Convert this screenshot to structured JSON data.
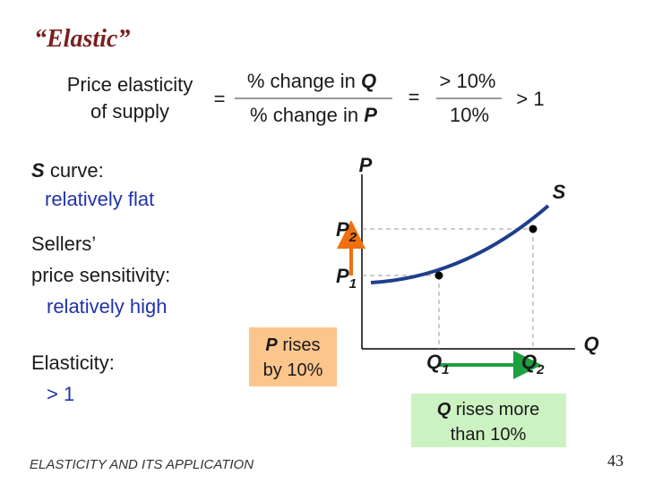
{
  "title": "“Elastic”",
  "formula": {
    "lhs_line1": "Price elasticity",
    "lhs_line2": "of supply",
    "eq1": "=",
    "num_text": "% change in",
    "num_var": "Q",
    "den_text": "% change in",
    "den_var": "P",
    "eq2": "=",
    "num2": "> 10%",
    "den2": "10%",
    "result": "> 1"
  },
  "left": {
    "s_var": "S",
    "s_text": "curve:",
    "s_line2": "relatively flat",
    "sellers1": "Sellers’",
    "sellers2": "price sensitivity:",
    "sellers3": "relatively high",
    "elast1": "Elasticity:",
    "elast2": "> 1"
  },
  "graph": {
    "y_axis": "P",
    "x_axis": "Q",
    "curve": "S",
    "p2": {
      "var": "P",
      "sub": "2"
    },
    "p1": {
      "var": "P",
      "sub": "1"
    },
    "q1": {
      "var": "Q",
      "sub": "1"
    },
    "q2": {
      "var": "Q",
      "sub": "2"
    }
  },
  "p_box": {
    "var": "P",
    "line1": "rises",
    "line2": "by 10%"
  },
  "q_box": {
    "var": "Q",
    "line1": "rises more",
    "line2": "than 10%"
  },
  "footer": "ELASTICITY AND ITS APPLICATION",
  "page": "43"
}
